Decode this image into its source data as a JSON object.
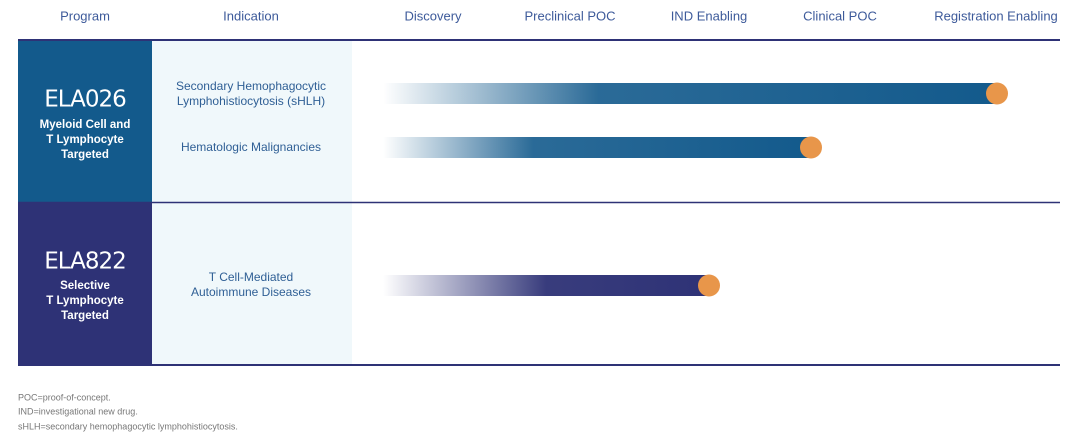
{
  "header": {
    "columns": [
      "Program",
      "Indication",
      "Discovery",
      "Preclinical POC",
      "IND Enabling",
      "Clinical POC",
      "Registration Enabling"
    ]
  },
  "programs": [
    {
      "name": "ELA026",
      "description": [
        "Myeloid Cell and",
        "T Lymphocyte",
        "Targeted"
      ],
      "indications": [
        [
          "Secondary Hemophagocytic",
          "Lymphohistiocytosis (sHLH)"
        ],
        [
          "Hematologic Malignancies"
        ]
      ]
    },
    {
      "name": "ELA822",
      "description": [
        "Selective",
        "T Lymphocyte",
        "Targeted"
      ],
      "indications": [
        [
          "T Cell-Mediated",
          "Autoimmune Diseases"
        ]
      ]
    }
  ],
  "footnotes": [
    "POC=proof-of-concept.",
    "IND=investigational new drug.",
    "sHLH=secondary hemophagocytic lymphohistiocytosis."
  ]
}
